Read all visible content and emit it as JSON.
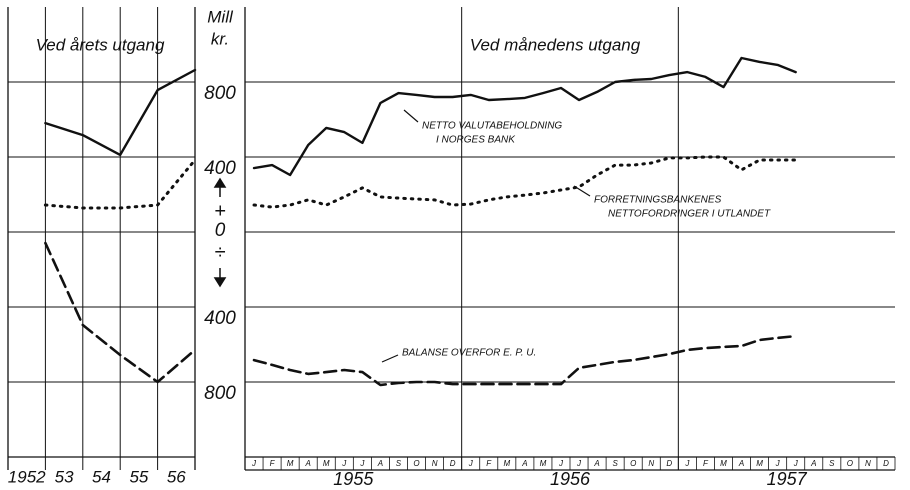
{
  "chart_data": [
    {
      "type": "line",
      "title": "Ved årets utgang",
      "categories": [
        "1952",
        "53",
        "54",
        "55",
        "56"
      ],
      "ylim": [
        -1200,
        1200
      ],
      "series": [
        {
          "style": "solid",
          "color": "#111111",
          "values": [
            581,
            517,
            411,
            757,
            864
          ]
        },
        {
          "style": "dotted",
          "color": "#111111",
          "values": [
            144,
            128,
            128,
            144,
            384
          ]
        },
        {
          "style": "dashed",
          "color": "#111111",
          "values": [
            -59,
            -496,
            -656,
            -800,
            -629
          ]
        }
      ]
    },
    {
      "type": "line",
      "title": "Ved månedens utgang",
      "y_label": [
        "Mill",
        "kr."
      ],
      "sign_labels": [
        "+",
        "÷"
      ],
      "categories": [
        "J",
        "F",
        "M",
        "A",
        "M",
        "J",
        "J",
        "A",
        "S",
        "O",
        "N",
        "D",
        "J",
        "F",
        "M",
        "A",
        "M",
        "J",
        "J",
        "A",
        "S",
        "O",
        "N",
        "D",
        "J",
        "F",
        "M",
        "A",
        "M",
        "J",
        "J",
        "A",
        "S",
        "O",
        "N",
        "D"
      ],
      "year_labels": [
        "1955",
        "1956",
        "1957"
      ],
      "ylim": [
        -1200,
        1200
      ],
      "yticks": [
        800,
        400,
        0,
        {
          "value": -400,
          "label": "400"
        },
        {
          "value": -800,
          "label": "800"
        }
      ],
      "grid": true,
      "series": [
        {
          "style": "solid",
          "color": "#111111",
          "label": [
            "NETTO VALUTABEHOLDNING",
            "I NORGES BANK"
          ],
          "values": [
            341,
            357,
            304,
            464,
            555,
            533,
            475,
            688,
            741,
            731,
            720,
            720,
            731,
            704,
            709,
            715,
            741,
            768,
            704,
            747,
            800,
            811,
            816,
            837,
            853,
            827,
            773,
            928,
            907,
            891,
            853,
            null,
            null,
            null,
            null,
            null
          ]
        },
        {
          "style": "dotted",
          "color": "#111111",
          "label": [
            "FORRETNINGSBANKENES",
            "NETTOFORDRINGER I UTLANDET"
          ],
          "values": [
            144,
            133,
            144,
            171,
            144,
            187,
            235,
            187,
            181,
            176,
            171,
            144,
            149,
            171,
            187,
            197,
            208,
            224,
            240,
            304,
            357,
            357,
            368,
            395,
            395,
            400,
            400,
            331,
            384,
            384,
            384,
            null,
            null,
            null,
            null,
            null
          ]
        },
        {
          "style": "dashed",
          "color": "#111111",
          "label": [
            "BALANSE OVERFOR E. P. U."
          ],
          "values": [
            -683,
            -709,
            -736,
            -757,
            -747,
            -736,
            -747,
            -816,
            -805,
            -800,
            -800,
            -811,
            -811,
            -811,
            -811,
            -811,
            -811,
            -811,
            -725,
            -709,
            -693,
            -683,
            -667,
            -651,
            -629,
            -619,
            -613,
            -608,
            -576,
            -565,
            -555,
            null,
            null,
            null,
            null,
            null
          ]
        }
      ]
    }
  ]
}
